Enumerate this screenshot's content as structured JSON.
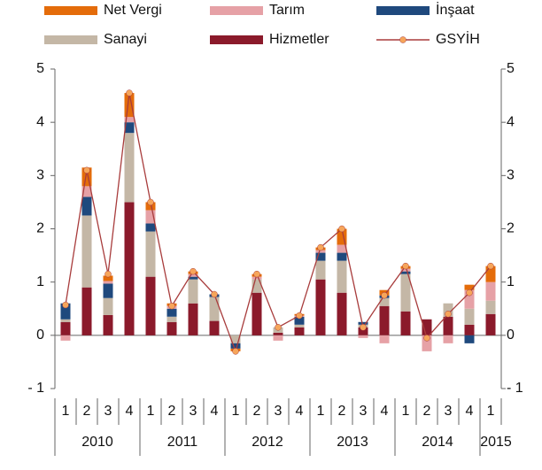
{
  "chart_data": {
    "type": "bar",
    "categories": [
      "1",
      "2",
      "3",
      "4",
      "1",
      "2",
      "3",
      "4",
      "1",
      "2",
      "3",
      "4",
      "1",
      "2",
      "3",
      "4",
      "1",
      "2",
      "3",
      "4",
      "1"
    ],
    "years": [
      "2010",
      "2011",
      "2012",
      "2013",
      "2014",
      "2015"
    ],
    "ylim": [
      -1,
      5
    ],
    "yticks": [
      5,
      4,
      3,
      2,
      1,
      0,
      {
        "value": -1,
        "label": "- 1"
      }
    ],
    "series": [
      {
        "name": "Hizmetler",
        "color": "#8b1a2b",
        "values": [
          0.25,
          0.9,
          0.38,
          2.5,
          1.1,
          0.25,
          0.6,
          0.27,
          0,
          0.8,
          0.05,
          0.15,
          1.05,
          0.8,
          0.15,
          0.55,
          0.45,
          0.3,
          0.35,
          0.2,
          0.4
        ]
      },
      {
        "name": "Sanayi",
        "color": "#c4b7a6",
        "values": [
          0.05,
          1.35,
          0.32,
          1.3,
          0.85,
          0.1,
          0.45,
          0.45,
          -0.15,
          0.25,
          0.1,
          0.05,
          0.35,
          0.6,
          0.05,
          0.15,
          0.7,
          0,
          0.25,
          0.3,
          0.25
        ]
      },
      {
        "name": "İnşaat",
        "color": "#1f497d",
        "values": [
          0.3,
          0.35,
          0.27,
          0.2,
          0.15,
          0.15,
          0.05,
          0.05,
          -0.1,
          0,
          0,
          0.15,
          0.15,
          0.15,
          0.05,
          0.05,
          0.05,
          0,
          0,
          -0.15,
          0
        ]
      },
      {
        "name": "Tarım",
        "color": "#e6a1a6",
        "values": [
          -0.1,
          0.2,
          0.05,
          0.1,
          0.25,
          0.05,
          0.05,
          0,
          0,
          0.05,
          -0.1,
          0.02,
          0.05,
          0.15,
          -0.05,
          -0.15,
          0.05,
          -0.3,
          -0.15,
          0.35,
          0.35
        ]
      },
      {
        "name": "Net Vergi",
        "color": "#e46c0a",
        "values": [
          0,
          0.35,
          0.1,
          0.45,
          0.15,
          0.05,
          0.05,
          0,
          -0.05,
          0.05,
          0,
          0.03,
          0.05,
          0.3,
          0,
          0.1,
          0.05,
          0,
          0,
          0.1,
          0.3
        ]
      }
    ],
    "line_series": {
      "name": "GSYİH",
      "color": "#a83c3c",
      "marker_color": "#f6a55a",
      "values": [
        0.57,
        3.1,
        1.15,
        4.55,
        2.5,
        0.55,
        1.2,
        0.77,
        -0.3,
        1.15,
        0.15,
        0.37,
        1.65,
        2.0,
        0.15,
        0.75,
        1.3,
        -0.05,
        0.4,
        0.8,
        1.3
      ]
    }
  }
}
